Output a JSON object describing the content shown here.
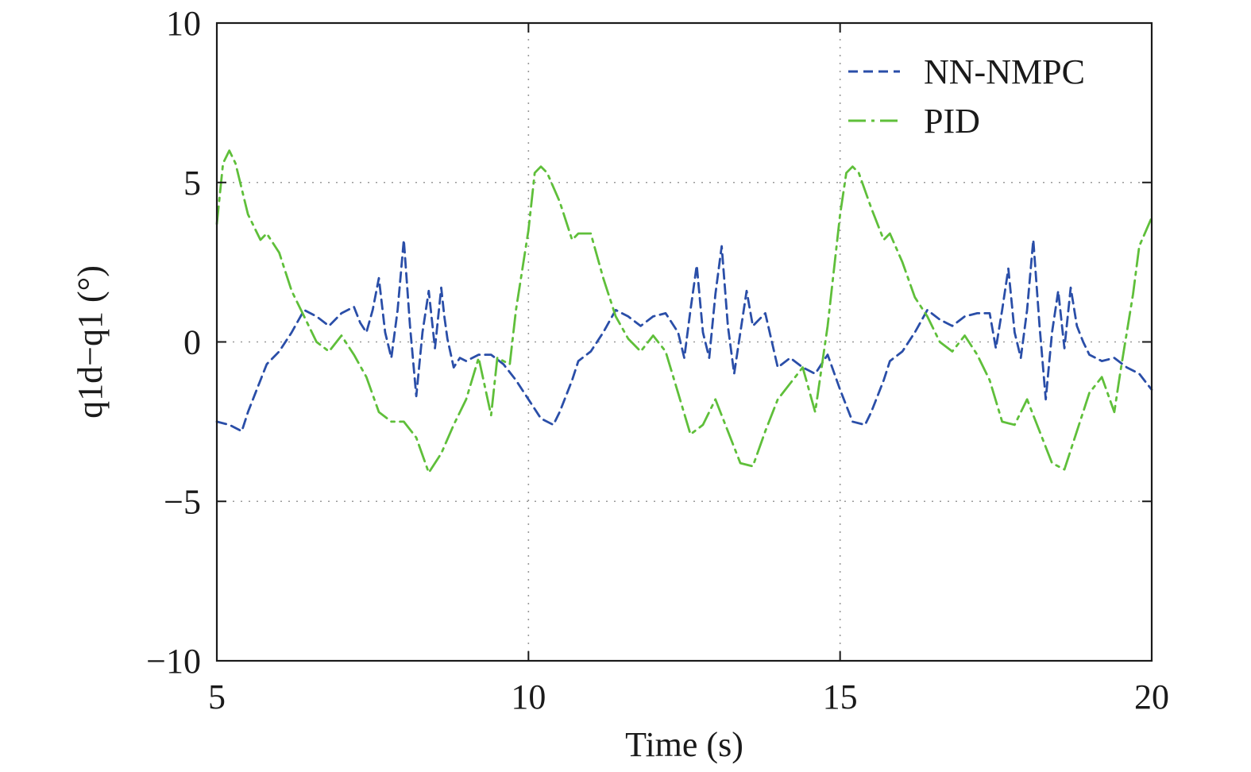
{
  "chart_data": {
    "type": "line",
    "title": "",
    "xlabel": "Time (s)",
    "ylabel": "q1d−q1 (°)",
    "xlim": [
      5,
      20
    ],
    "ylim": [
      -10,
      10
    ],
    "x_ticks": [
      5,
      10,
      15,
      20
    ],
    "y_ticks": [
      -10,
      -5,
      0,
      5,
      10
    ],
    "x_tick_labels": [
      "5",
      "10",
      "15",
      "20"
    ],
    "y_tick_labels": [
      "−10",
      "−5",
      "0",
      "5",
      "10"
    ],
    "grid": "dotted",
    "legend_position": "top-right",
    "series": [
      {
        "name": "NN-NMPC",
        "color": "#2a4ea8",
        "dash": "dashed",
        "x": [
          5.0,
          5.2,
          5.4,
          5.5,
          5.7,
          5.8,
          6.0,
          6.2,
          6.4,
          6.6,
          6.8,
          7.0,
          7.2,
          7.3,
          7.4,
          7.5,
          7.6,
          7.7,
          7.8,
          7.9,
          8.0,
          8.1,
          8.2,
          8.3,
          8.4,
          8.5,
          8.6,
          8.65,
          8.7,
          8.8,
          8.9,
          9.0,
          9.2,
          9.4,
          9.6,
          9.8,
          10.0,
          10.2,
          10.4,
          10.5,
          10.7,
          10.8,
          11.0,
          11.2,
          11.4,
          11.6,
          11.8,
          12.0,
          12.2,
          12.4,
          12.5,
          12.6,
          12.7,
          12.8,
          12.9,
          13.0,
          13.1,
          13.2,
          13.3,
          13.4,
          13.5,
          13.6,
          13.8,
          14.0,
          14.2,
          14.4,
          14.6,
          14.8,
          15.0,
          15.2,
          15.4,
          15.5,
          15.7,
          15.8,
          16.0,
          16.2,
          16.4,
          16.6,
          16.8,
          17.0,
          17.2,
          17.4,
          17.5,
          17.6,
          17.7,
          17.8,
          17.9,
          18.0,
          18.1,
          18.2,
          18.3,
          18.4,
          18.5,
          18.6,
          18.7,
          18.8,
          18.9,
          19.0,
          19.2,
          19.4,
          19.6,
          19.8,
          20.0
        ],
        "y": [
          -2.5,
          -2.6,
          -2.8,
          -2.2,
          -1.2,
          -0.7,
          -0.3,
          0.3,
          1.0,
          0.8,
          0.5,
          0.9,
          1.1,
          0.6,
          0.3,
          1.0,
          2.0,
          0.3,
          -0.5,
          1.0,
          3.2,
          0.5,
          -1.7,
          0.3,
          1.6,
          -0.2,
          1.7,
          0.8,
          0.1,
          -0.8,
          -0.5,
          -0.6,
          -0.4,
          -0.4,
          -0.7,
          -1.2,
          -1.8,
          -2.4,
          -2.6,
          -2.2,
          -1.2,
          -0.6,
          -0.3,
          0.3,
          1.0,
          0.8,
          0.5,
          0.8,
          0.9,
          0.3,
          -0.5,
          1.0,
          2.4,
          0.3,
          -0.5,
          1.5,
          3.0,
          0.5,
          -1.0,
          0.3,
          1.6,
          0.5,
          0.9,
          -0.8,
          -0.5,
          -0.8,
          -1.0,
          -0.4,
          -1.5,
          -2.5,
          -2.6,
          -2.2,
          -1.2,
          -0.6,
          -0.3,
          0.3,
          1.0,
          0.7,
          0.5,
          0.8,
          0.9,
          0.9,
          -0.2,
          1.0,
          2.3,
          0.3,
          -0.5,
          1.0,
          3.2,
          0.5,
          -1.8,
          0.3,
          1.6,
          -0.2,
          1.7,
          0.5,
          0.0,
          -0.4,
          -0.6,
          -0.5,
          -0.8,
          -1.0,
          -1.5
        ]
      },
      {
        "name": "PID",
        "color": "#5fbf3a",
        "dash": "dash-dot",
        "x": [
          5.0,
          5.1,
          5.2,
          5.3,
          5.5,
          5.7,
          5.8,
          6.0,
          6.2,
          6.4,
          6.6,
          6.8,
          7.0,
          7.2,
          7.4,
          7.6,
          7.8,
          8.0,
          8.2,
          8.4,
          8.6,
          8.8,
          9.0,
          9.2,
          9.4,
          9.5,
          9.7,
          9.8,
          10.0,
          10.1,
          10.2,
          10.3,
          10.5,
          10.7,
          10.8,
          11.0,
          11.2,
          11.4,
          11.6,
          11.8,
          12.0,
          12.2,
          12.4,
          12.6,
          12.8,
          13.0,
          13.2,
          13.4,
          13.6,
          13.8,
          14.0,
          14.2,
          14.4,
          14.6,
          14.8,
          15.0,
          15.1,
          15.2,
          15.3,
          15.5,
          15.7,
          15.8,
          16.0,
          16.2,
          16.4,
          16.6,
          16.8,
          17.0,
          17.2,
          17.4,
          17.6,
          17.8,
          18.0,
          18.2,
          18.4,
          18.6,
          18.8,
          19.0,
          19.2,
          19.4,
          19.5,
          19.7,
          19.8,
          20.0
        ],
        "y": [
          3.7,
          5.6,
          6.0,
          5.6,
          4.0,
          3.2,
          3.4,
          2.8,
          1.6,
          0.8,
          0.0,
          -0.3,
          0.2,
          -0.4,
          -1.1,
          -2.2,
          -2.5,
          -2.5,
          -3.0,
          -4.1,
          -3.5,
          -2.6,
          -1.8,
          -0.5,
          -2.3,
          -0.5,
          -0.7,
          1.0,
          3.5,
          5.3,
          5.5,
          5.3,
          4.4,
          3.2,
          3.4,
          3.4,
          2.0,
          0.8,
          0.1,
          -0.3,
          0.2,
          -0.3,
          -1.6,
          -2.9,
          -2.6,
          -1.8,
          -2.8,
          -3.8,
          -3.9,
          -2.8,
          -1.8,
          -1.3,
          -0.8,
          -2.2,
          0.5,
          4.0,
          5.3,
          5.5,
          5.3,
          4.2,
          3.2,
          3.4,
          2.5,
          1.4,
          0.8,
          0.0,
          -0.3,
          0.2,
          -0.4,
          -1.2,
          -2.5,
          -2.6,
          -1.8,
          -2.8,
          -3.8,
          -4.0,
          -2.8,
          -1.6,
          -1.1,
          -2.2,
          -0.9,
          1.5,
          3.0,
          3.9
        ]
      }
    ]
  }
}
